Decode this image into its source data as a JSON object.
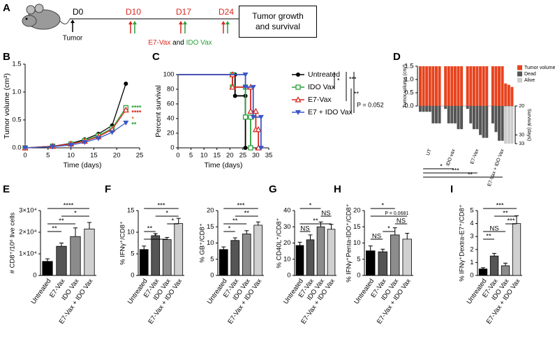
{
  "panel_labels": [
    "A",
    "B",
    "C",
    "D",
    "E",
    "F",
    "G",
    "H",
    "I"
  ],
  "timeline": {
    "days": [
      "D0",
      "D10",
      "D17",
      "D24"
    ],
    "start_label": "Tumor",
    "end_box": "Tumor growth and survival",
    "treatment": [
      "E7-Vax",
      "and",
      "IDO Vax"
    ]
  },
  "chart_data": [
    {
      "type": "line",
      "x_label": "Time (days)",
      "y_label": "Tumor volume (cm³)",
      "x": [
        0,
        6,
        10,
        13,
        16,
        19,
        22
      ],
      "xlim": [
        0,
        25
      ],
      "xticks": [
        0,
        5,
        10,
        15,
        20,
        25
      ],
      "ylim": [
        0,
        1.5
      ],
      "yticks": [
        {
          "value": 0,
          "label": "0.0"
        },
        {
          "value": 0.5,
          "label": "0.5"
        },
        {
          "value": 1,
          "label": "1.0"
        },
        {
          "value": 1.5,
          "label": "1.5"
        }
      ],
      "series": [
        {
          "color": "#000000",
          "marker": "circle",
          "values": [
            0,
            0.03,
            0.08,
            0.15,
            0.25,
            0.4,
            1.15
          ]
        },
        {
          "color": "#2aa13a",
          "marker": "square-open",
          "values": [
            0,
            0.03,
            0.07,
            0.13,
            0.22,
            0.35,
            0.72
          ]
        },
        {
          "color": "#d8281e",
          "marker": "triangle-open",
          "values": [
            0,
            0.03,
            0.07,
            0.12,
            0.2,
            0.33,
            0.68
          ]
        },
        {
          "color": "#3a56c8",
          "marker": "triangle-down",
          "values": [
            0,
            0.02,
            0.05,
            0.1,
            0.17,
            0.28,
            0.45
          ]
        }
      ],
      "annotations": [
        {
          "text": "****",
          "color": "#2aa13a"
        },
        {
          "text": "****",
          "color": "#d8281e"
        },
        {
          "text": "*",
          "color": "#e67e22"
        },
        {
          "text": "**",
          "color": "#2aa13a"
        }
      ]
    },
    {
      "type": "step",
      "x_label": "Time (days)",
      "y_label": "Percent survival",
      "xlim": [
        0,
        35
      ],
      "xticks": [
        0,
        5,
        10,
        15,
        20,
        25,
        30,
        35
      ],
      "ylim": [
        0,
        100
      ],
      "yticks": [
        0,
        20,
        40,
        60,
        80,
        100
      ],
      "legend": true,
      "series": [
        {
          "name": "Untreated",
          "color": "#000000",
          "marker": "circle",
          "x": [
            0,
            22,
            22,
            26,
            26
          ],
          "values": [
            100,
            100,
            71,
            71,
            0
          ]
        },
        {
          "name": "IDO Vax",
          "color": "#2aa13a",
          "marker": "square-open",
          "x": [
            0,
            21,
            21,
            26,
            26,
            28,
            28
          ],
          "values": [
            100,
            100,
            83,
            83,
            42,
            42,
            0
          ]
        },
        {
          "name": "E7-Vax",
          "color": "#d8281e",
          "marker": "triangle-open",
          "x": [
            0,
            21,
            21,
            28,
            28,
            30,
            30,
            31,
            31
          ],
          "values": [
            100,
            100,
            83,
            83,
            50,
            50,
            25,
            25,
            0
          ]
        },
        {
          "name": "E7 + IDO Vax",
          "color": "#3a56c8",
          "marker": "triangle-down",
          "x": [
            0,
            26,
            26,
            29,
            29,
            32,
            32
          ],
          "values": [
            100,
            100,
            83,
            83,
            42,
            42,
            0
          ]
        }
      ],
      "significance": [
        "*",
        "***",
        "**",
        "P = 0.052"
      ]
    },
    {
      "type": "waterfall",
      "y_label": "Tumor volume (cm³)",
      "y2_label": "Survival (days)",
      "categories": [
        "UT",
        "IDO vax",
        "E7-Vax",
        "E7-Vax + IDO Vax"
      ],
      "ylim": [
        0,
        1.5
      ],
      "yticks": [
        {
          "value": 0,
          "label": "0.0"
        },
        {
          "value": 0.5,
          "label": "0.5"
        },
        {
          "value": 1,
          "label": "1.0"
        },
        {
          "value": 1.5,
          "label": "1.5"
        }
      ],
      "y2lim": [
        20,
        33
      ],
      "y2ticks": [
        20,
        30,
        33
      ],
      "series": [
        {
          "name": "Tumor volume",
          "color": "#e8431e",
          "values": [
            [
              1.5,
              1.5,
              1.5,
              1.5,
              1.5,
              1.5,
              1.5
            ],
            [
              1.5,
              1.5,
              1.5,
              1.5,
              1.5,
              1.5
            ],
            [
              1.5,
              1.5,
              1.5,
              1.5,
              1.5,
              1.5,
              1.5
            ],
            [
              1.5,
              1.5,
              1.5,
              1.5,
              0.85,
              0.8,
              0.72
            ]
          ]
        },
        {
          "name": "Dead",
          "color": "#555555",
          "axis": "y2",
          "values": [
            [
              22,
              22,
              22,
              22,
              26,
              26,
              26
            ],
            [
              21,
              26,
              26,
              26,
              28,
              28
            ],
            [
              21,
              26,
              28,
              28,
              30,
              31,
              31
            ],
            [
              26,
              29,
              32,
              32,
              null,
              null,
              null
            ]
          ]
        },
        {
          "name": "Alive",
          "color": "#cccccc",
          "axis": "y2",
          "values": [
            [
              null,
              null,
              null,
              null,
              null,
              null,
              null
            ],
            [
              null,
              null,
              null,
              null,
              null,
              null
            ],
            [
              null,
              null,
              null,
              null,
              null,
              null,
              null
            ],
            [
              null,
              null,
              null,
              null,
              33,
              33,
              33
            ]
          ]
        }
      ],
      "significance": [
        {
          "label": "*",
          "between": [
            "UT",
            "IDO vax"
          ]
        },
        {
          "label": "***",
          "between": [
            "UT",
            "E7-Vax"
          ]
        },
        {
          "label": "**",
          "between": [
            "UT",
            "E7-Vax + IDO Vax"
          ]
        }
      ]
    },
    {
      "type": "bar",
      "y_label": "# CD8⁺/10⁶ live cells",
      "categories": [
        "Untreated",
        "E7-Vax",
        "IDO Vax",
        "E7-Vax + IDO Vax"
      ],
      "colors": [
        "#000000",
        "#555555",
        "#8c8c8c",
        "#d0d0d0"
      ],
      "values": [
        6500,
        13500,
        18000,
        21500
      ],
      "errors": [
        1200,
        1500,
        4000,
        3000
      ],
      "ylim": [
        0,
        30000
      ],
      "yticks": [
        {
          "value": 0,
          "label": "0"
        },
        {
          "value": 10000,
          "label": "1×10⁴"
        },
        {
          "value": 20000,
          "label": "2×10⁴"
        },
        {
          "value": 30000,
          "label": "3×10⁴"
        }
      ],
      "significance": [
        {
          "label": "****",
          "between": [
            "Untreated",
            "E7-Vax + IDO Vax"
          ]
        },
        {
          "label": "*",
          "between": [
            "E7-Vax",
            "E7-Vax + IDO Vax"
          ]
        },
        {
          "label": "**",
          "between": [
            "Untreated",
            "IDO Vax"
          ]
        },
        {
          "label": "**",
          "between": [
            "Untreated",
            "E7-Vax"
          ]
        }
      ]
    },
    {
      "type": "bar",
      "y_label": "% IFNγ⁺/CD8⁺",
      "categories": [
        "Untreated",
        "E7-Vax",
        "IDO Vax",
        "E7-Vax + IDO Vax"
      ],
      "colors": [
        "#000000",
        "#555555",
        "#8c8c8c",
        "#d0d0d0"
      ],
      "values": [
        6,
        9.2,
        8.3,
        12
      ],
      "errors": [
        0.8,
        0.5,
        0.5,
        1.2
      ],
      "ylim": [
        0,
        15
      ],
      "yticks": [
        0,
        5,
        10,
        15
      ],
      "significance": [
        {
          "label": "***",
          "between": [
            "Untreated",
            "E7-Vax + IDO Vax"
          ]
        },
        {
          "label": "*",
          "between": [
            "E7-Vax",
            "E7-Vax + IDO Vax"
          ]
        },
        {
          "label": "*",
          "between": [
            "IDO Vax",
            "E7-Vax + IDO Vax"
          ]
        },
        {
          "label": "**",
          "between": [
            "Untreated",
            "E7-Vax"
          ]
        },
        {
          "label": "*",
          "between": [
            "Untreated",
            "IDO Vax"
          ]
        }
      ]
    },
    {
      "type": "bar",
      "y_label": "% GB⁺/CD8⁺",
      "categories": [
        "Untreated",
        "E7-Vax",
        "IDO Vax",
        "E7-Vax + IDO Vax"
      ],
      "colors": [
        "#000000",
        "#555555",
        "#8c8c8c",
        "#d0d0d0"
      ],
      "values": [
        8,
        10.8,
        12.8,
        15.5
      ],
      "errors": [
        0.8,
        0.8,
        1,
        1
      ],
      "ylim": [
        0,
        20
      ],
      "yticks": [
        0,
        5,
        10,
        15,
        20
      ],
      "significance": [
        {
          "label": "***",
          "between": [
            "Untreated",
            "E7-Vax + IDO Vax"
          ]
        },
        {
          "label": "**",
          "between": [
            "E7-Vax",
            "E7-Vax + IDO Vax"
          ]
        },
        {
          "label": "**",
          "between": [
            "Untreated",
            "IDO Vax"
          ]
        },
        {
          "label": "*",
          "between": [
            "Untreated",
            "E7-Vax"
          ]
        }
      ]
    },
    {
      "type": "bar",
      "y_label": "% CD40L⁺/CD8⁺",
      "categories": [
        "Untreated",
        "E7-Vax",
        "IDO Vax",
        "E7-Vax + IDO Vax"
      ],
      "colors": [
        "#000000",
        "#555555",
        "#8c8c8c",
        "#d0d0d0"
      ],
      "values": [
        18.5,
        22,
        30,
        28.5
      ],
      "errors": [
        2,
        3,
        3,
        3
      ],
      "ylim": [
        0,
        40
      ],
      "yticks": [
        0,
        10,
        20,
        30,
        40
      ],
      "significance": [
        {
          "label": "*",
          "between": [
            "Untreated",
            "IDO Vax"
          ]
        },
        {
          "label": "NS",
          "between": [
            "IDO Vax",
            "E7-Vax + IDO Vax"
          ]
        },
        {
          "label": "**",
          "between": [
            "Untreated",
            "E7-Vax + IDO Vax"
          ]
        },
        {
          "label": "NS",
          "between": [
            "Untreated",
            "E7-Vax"
          ]
        }
      ]
    },
    {
      "type": "bar",
      "y_label": "% IFNγ⁺Penta-IDO⁺/CD8⁺",
      "categories": [
        "Untreated",
        "E7-Vax",
        "IDO Vax",
        "E7-Vax + IDO Vax"
      ],
      "colors": [
        "#000000",
        "#555555",
        "#8c8c8c",
        "#d0d0d0"
      ],
      "values": [
        7.6,
        7.3,
        12.5,
        11.2
      ],
      "errors": [
        1.5,
        0.8,
        2.2,
        1.8
      ],
      "ylim": [
        0,
        20
      ],
      "yticks": [
        0,
        5,
        10,
        15,
        20
      ],
      "significance": [
        {
          "label": "*",
          "between": [
            "Untreated",
            "IDO Vax"
          ]
        },
        {
          "label": "P = 0.0681",
          "between": [
            "Untreated",
            "E7-Vax + IDO Vax"
          ]
        },
        {
          "label": "NS",
          "between": [
            "IDO Vax",
            "E7-Vax + IDO Vax"
          ]
        },
        {
          "label": "*",
          "between": [
            "E7-Vax",
            "IDO Vax"
          ]
        },
        {
          "label": "NS",
          "between": [
            "Untreated",
            "E7-Vax"
          ]
        }
      ]
    },
    {
      "type": "bar",
      "y_label": "% IFNγ⁺Dextra-E7⁺/CD8⁺",
      "categories": [
        "Untreated",
        "E7-Vax",
        "IDO Vax",
        "E7-Vax + IDO Vax"
      ],
      "colors": [
        "#000000",
        "#555555",
        "#8c8c8c",
        "#d0d0d0"
      ],
      "values": [
        0.5,
        1.5,
        0.75,
        4
      ],
      "errors": [
        0.1,
        0.2,
        0.2,
        0.6
      ],
      "ylim": [
        0,
        5
      ],
      "yticks": [
        0,
        1,
        2,
        3,
        4,
        5
      ],
      "significance": [
        {
          "label": "***",
          "between": [
            "Untreated",
            "E7-Vax + IDO Vax"
          ]
        },
        {
          "label": "**",
          "between": [
            "E7-Vax",
            "E7-Vax + IDO Vax"
          ]
        },
        {
          "label": "***",
          "between": [
            "IDO Vax",
            "E7-Vax + IDO Vax"
          ]
        },
        {
          "label": "NS",
          "between": [
            "Untreated",
            "IDO Vax"
          ]
        },
        {
          "label": "**",
          "between": [
            "Untreated",
            "E7-Vax"
          ]
        }
      ]
    }
  ]
}
